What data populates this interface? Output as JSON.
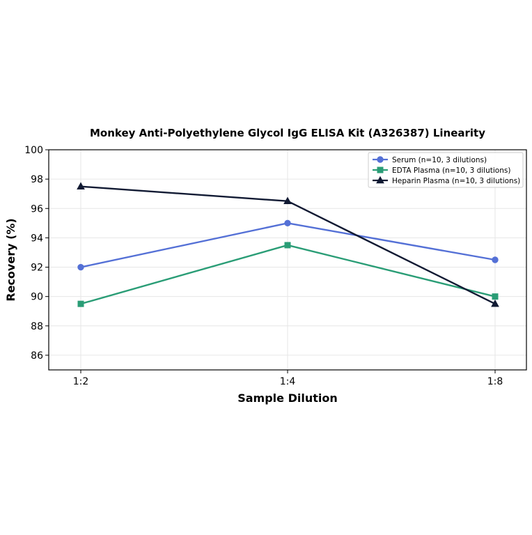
{
  "chart_data": {
    "type": "line",
    "title": "Monkey Anti-Polyethylene Glycol IgG ELISA Kit (A326387) Linearity",
    "xlabel": "Sample Dilution",
    "ylabel": "Recovery (%)",
    "categories": [
      "1:2",
      "1:4",
      "1:8"
    ],
    "ylim": [
      85,
      100
    ],
    "yticks": [
      86,
      88,
      90,
      92,
      94,
      96,
      98,
      100
    ],
    "grid": true,
    "legend_position": "top-right",
    "series": [
      {
        "name": "Serum (n=10, 3 dilutions)",
        "values": [
          92.0,
          95.0,
          92.5
        ],
        "color": "#5470d6",
        "marker": "circle"
      },
      {
        "name": "EDTA Plasma (n=10, 3 dilutions)",
        "values": [
          89.5,
          93.5,
          90.0
        ],
        "color": "#2a9d76",
        "marker": "square"
      },
      {
        "name": "Heparin Plasma (n=10, 3 dilutions)",
        "values": [
          97.5,
          96.5,
          89.5
        ],
        "color": "#111a33",
        "marker": "triangle"
      }
    ]
  }
}
